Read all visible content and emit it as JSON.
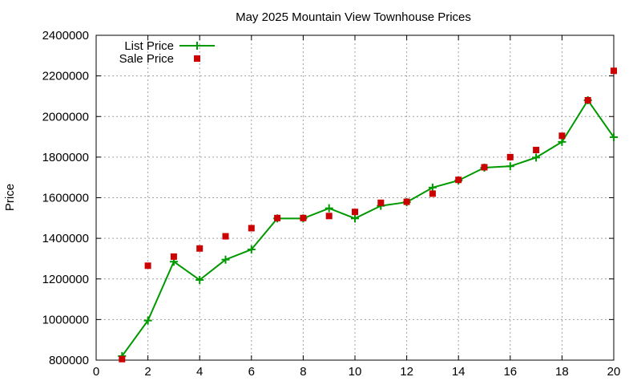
{
  "chart_data": {
    "type": "line",
    "title": "May 2025 Mountain View Townhouse Prices",
    "xlabel": "",
    "ylabel": "Price",
    "xlim": [
      0,
      20
    ],
    "ylim": [
      800000,
      2400000
    ],
    "x_ticks": [
      0,
      2,
      4,
      6,
      8,
      10,
      12,
      14,
      16,
      18,
      20
    ],
    "y_ticks": [
      800000,
      1000000,
      1200000,
      1400000,
      1600000,
      1800000,
      2000000,
      2200000,
      2400000
    ],
    "grid": true,
    "legend_position": "top-left",
    "x": [
      1,
      2,
      3,
      4,
      5,
      6,
      7,
      8,
      9,
      10,
      11,
      12,
      13,
      14,
      15,
      16,
      17,
      18,
      19,
      20
    ],
    "series": [
      {
        "name": "List Price",
        "style": "lines+points",
        "marker": "plus",
        "color": "#009900",
        "values": [
          820000,
          995000,
          1285000,
          1195000,
          1295000,
          1345000,
          1498000,
          1498000,
          1548000,
          1498000,
          1560000,
          1578000,
          1650000,
          1685000,
          1748000,
          1755000,
          1798000,
          1875000,
          2080000,
          1898000
        ]
      },
      {
        "name": "Sale Price",
        "style": "points",
        "marker": "square",
        "color": "#cc0000",
        "values": [
          805000,
          1265000,
          1310000,
          1350000,
          1410000,
          1450000,
          1500000,
          1500000,
          1510000,
          1530000,
          1575000,
          1580000,
          1620000,
          1688000,
          1750000,
          1800000,
          1835000,
          1905000,
          2080000,
          2225000
        ]
      }
    ]
  }
}
